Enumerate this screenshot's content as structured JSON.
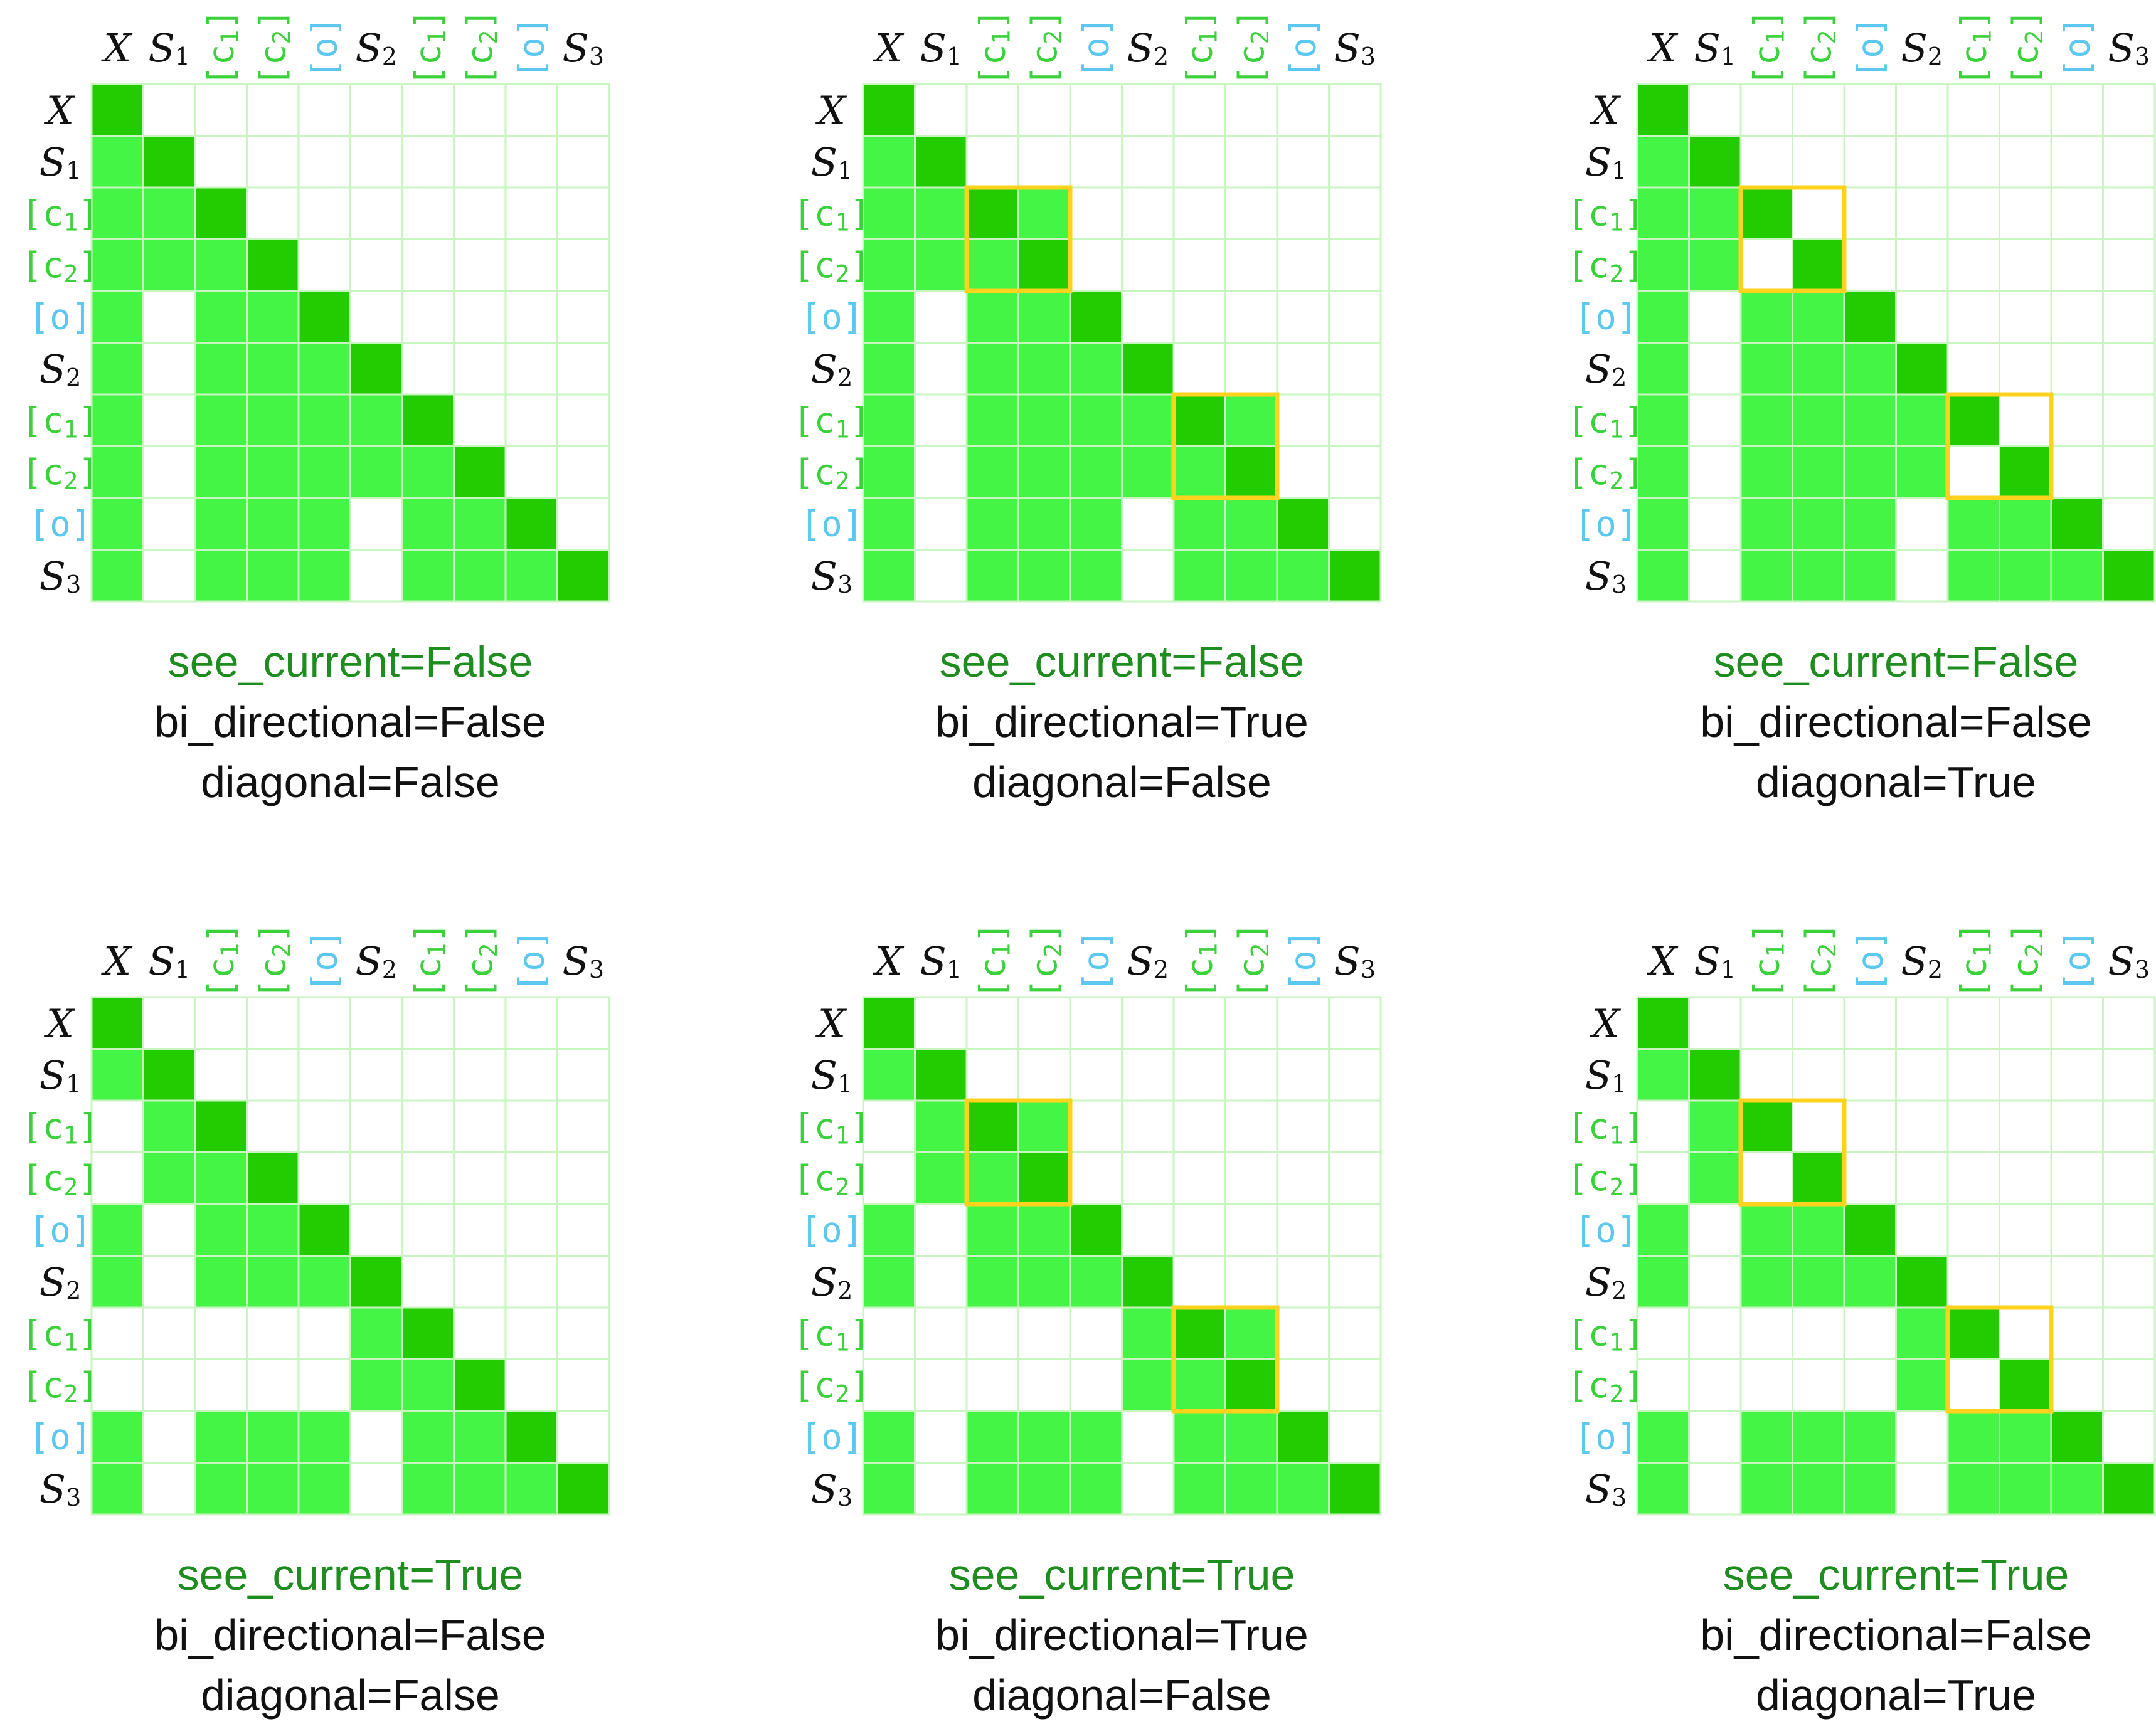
{
  "figure": {
    "labels": [
      {
        "main": "X",
        "sub": "",
        "kind": "seq"
      },
      {
        "main": "S",
        "sub": "1",
        "kind": "seq"
      },
      {
        "main": "[c",
        "sub": "1",
        "close": "]",
        "kind": "c"
      },
      {
        "main": "[c",
        "sub": "2",
        "close": "]",
        "kind": "c"
      },
      {
        "main": "[o]",
        "sub": "",
        "kind": "o"
      },
      {
        "main": "S",
        "sub": "2",
        "kind": "seq"
      },
      {
        "main": "[c",
        "sub": "1",
        "close": "]",
        "kind": "c"
      },
      {
        "main": "[c",
        "sub": "2",
        "close": "]",
        "kind": "c"
      },
      {
        "main": "[o]",
        "sub": "",
        "kind": "o"
      },
      {
        "main": "S",
        "sub": "3",
        "kind": "seq"
      }
    ],
    "colors": {
      "seq_label": "#111111",
      "c_label": "#3bd13b",
      "o_label": "#5cc8f0",
      "cell_allowed": "#45f545",
      "cell_diagonal": "#22cc00",
      "grid_line": "#c8f5c0",
      "highlight_box": "#ffd21e",
      "see_current_text": "#1e8c1e",
      "param_text": "#111111"
    },
    "panels": [
      {
        "see_current": "see_current=False",
        "bi_directional": "bi_directional=False",
        "diagonal": "diagonal=False",
        "mask": [
          "1000000000",
          "1100000000",
          "1110000000",
          "1111000000",
          "1011100000",
          "1011110000",
          "1011111000",
          "1011111100",
          "1011101110",
          "1011101111"
        ],
        "highlights": []
      },
      {
        "see_current": "see_current=False",
        "bi_directional": "bi_directional=True",
        "diagonal": "diagonal=False",
        "mask": [
          "1000000000",
          "1100000000",
          "1111000000",
          "1111000000",
          "1011100000",
          "1011110000",
          "1011111100",
          "1011111100",
          "1011101110",
          "1011101111"
        ],
        "highlights": [
          [
            2,
            3
          ],
          [
            6,
            7
          ]
        ]
      },
      {
        "see_current": "see_current=False",
        "bi_directional": "bi_directional=False",
        "diagonal": "diagonal=True",
        "mask": [
          "1000000000",
          "1100000000",
          "1110000000",
          "1101000000",
          "1011100000",
          "1011110000",
          "1011111000",
          "1011110100",
          "1011101110",
          "1011101111"
        ],
        "highlights": [
          [
            2,
            3
          ],
          [
            6,
            7
          ]
        ]
      },
      {
        "see_current": "see_current=True",
        "bi_directional": "bi_directional=False",
        "diagonal": "diagonal=False",
        "mask": [
          "1000000000",
          "1100000000",
          "0110000000",
          "0111000000",
          "1011100000",
          "1011110000",
          "0000011000",
          "0000011100",
          "1011101110",
          "1011101111"
        ],
        "highlights": []
      },
      {
        "see_current": "see_current=True",
        "bi_directional": "bi_directional=True",
        "diagonal": "diagonal=False",
        "mask": [
          "1000000000",
          "1100000000",
          "0111000000",
          "0111000000",
          "1011100000",
          "1011110000",
          "0000011100",
          "0000011100",
          "1011101110",
          "1011101111"
        ],
        "highlights": [
          [
            2,
            3
          ],
          [
            6,
            7
          ]
        ]
      },
      {
        "see_current": "see_current=True",
        "bi_directional": "bi_directional=False",
        "diagonal": "diagonal=True",
        "mask": [
          "1000000000",
          "1100000000",
          "0110000000",
          "0101000000",
          "1011100000",
          "1011110000",
          "0000011000",
          "0000010100",
          "1011101110",
          "1011101111"
        ],
        "highlights": [
          [
            2,
            3
          ],
          [
            6,
            7
          ]
        ]
      }
    ]
  }
}
